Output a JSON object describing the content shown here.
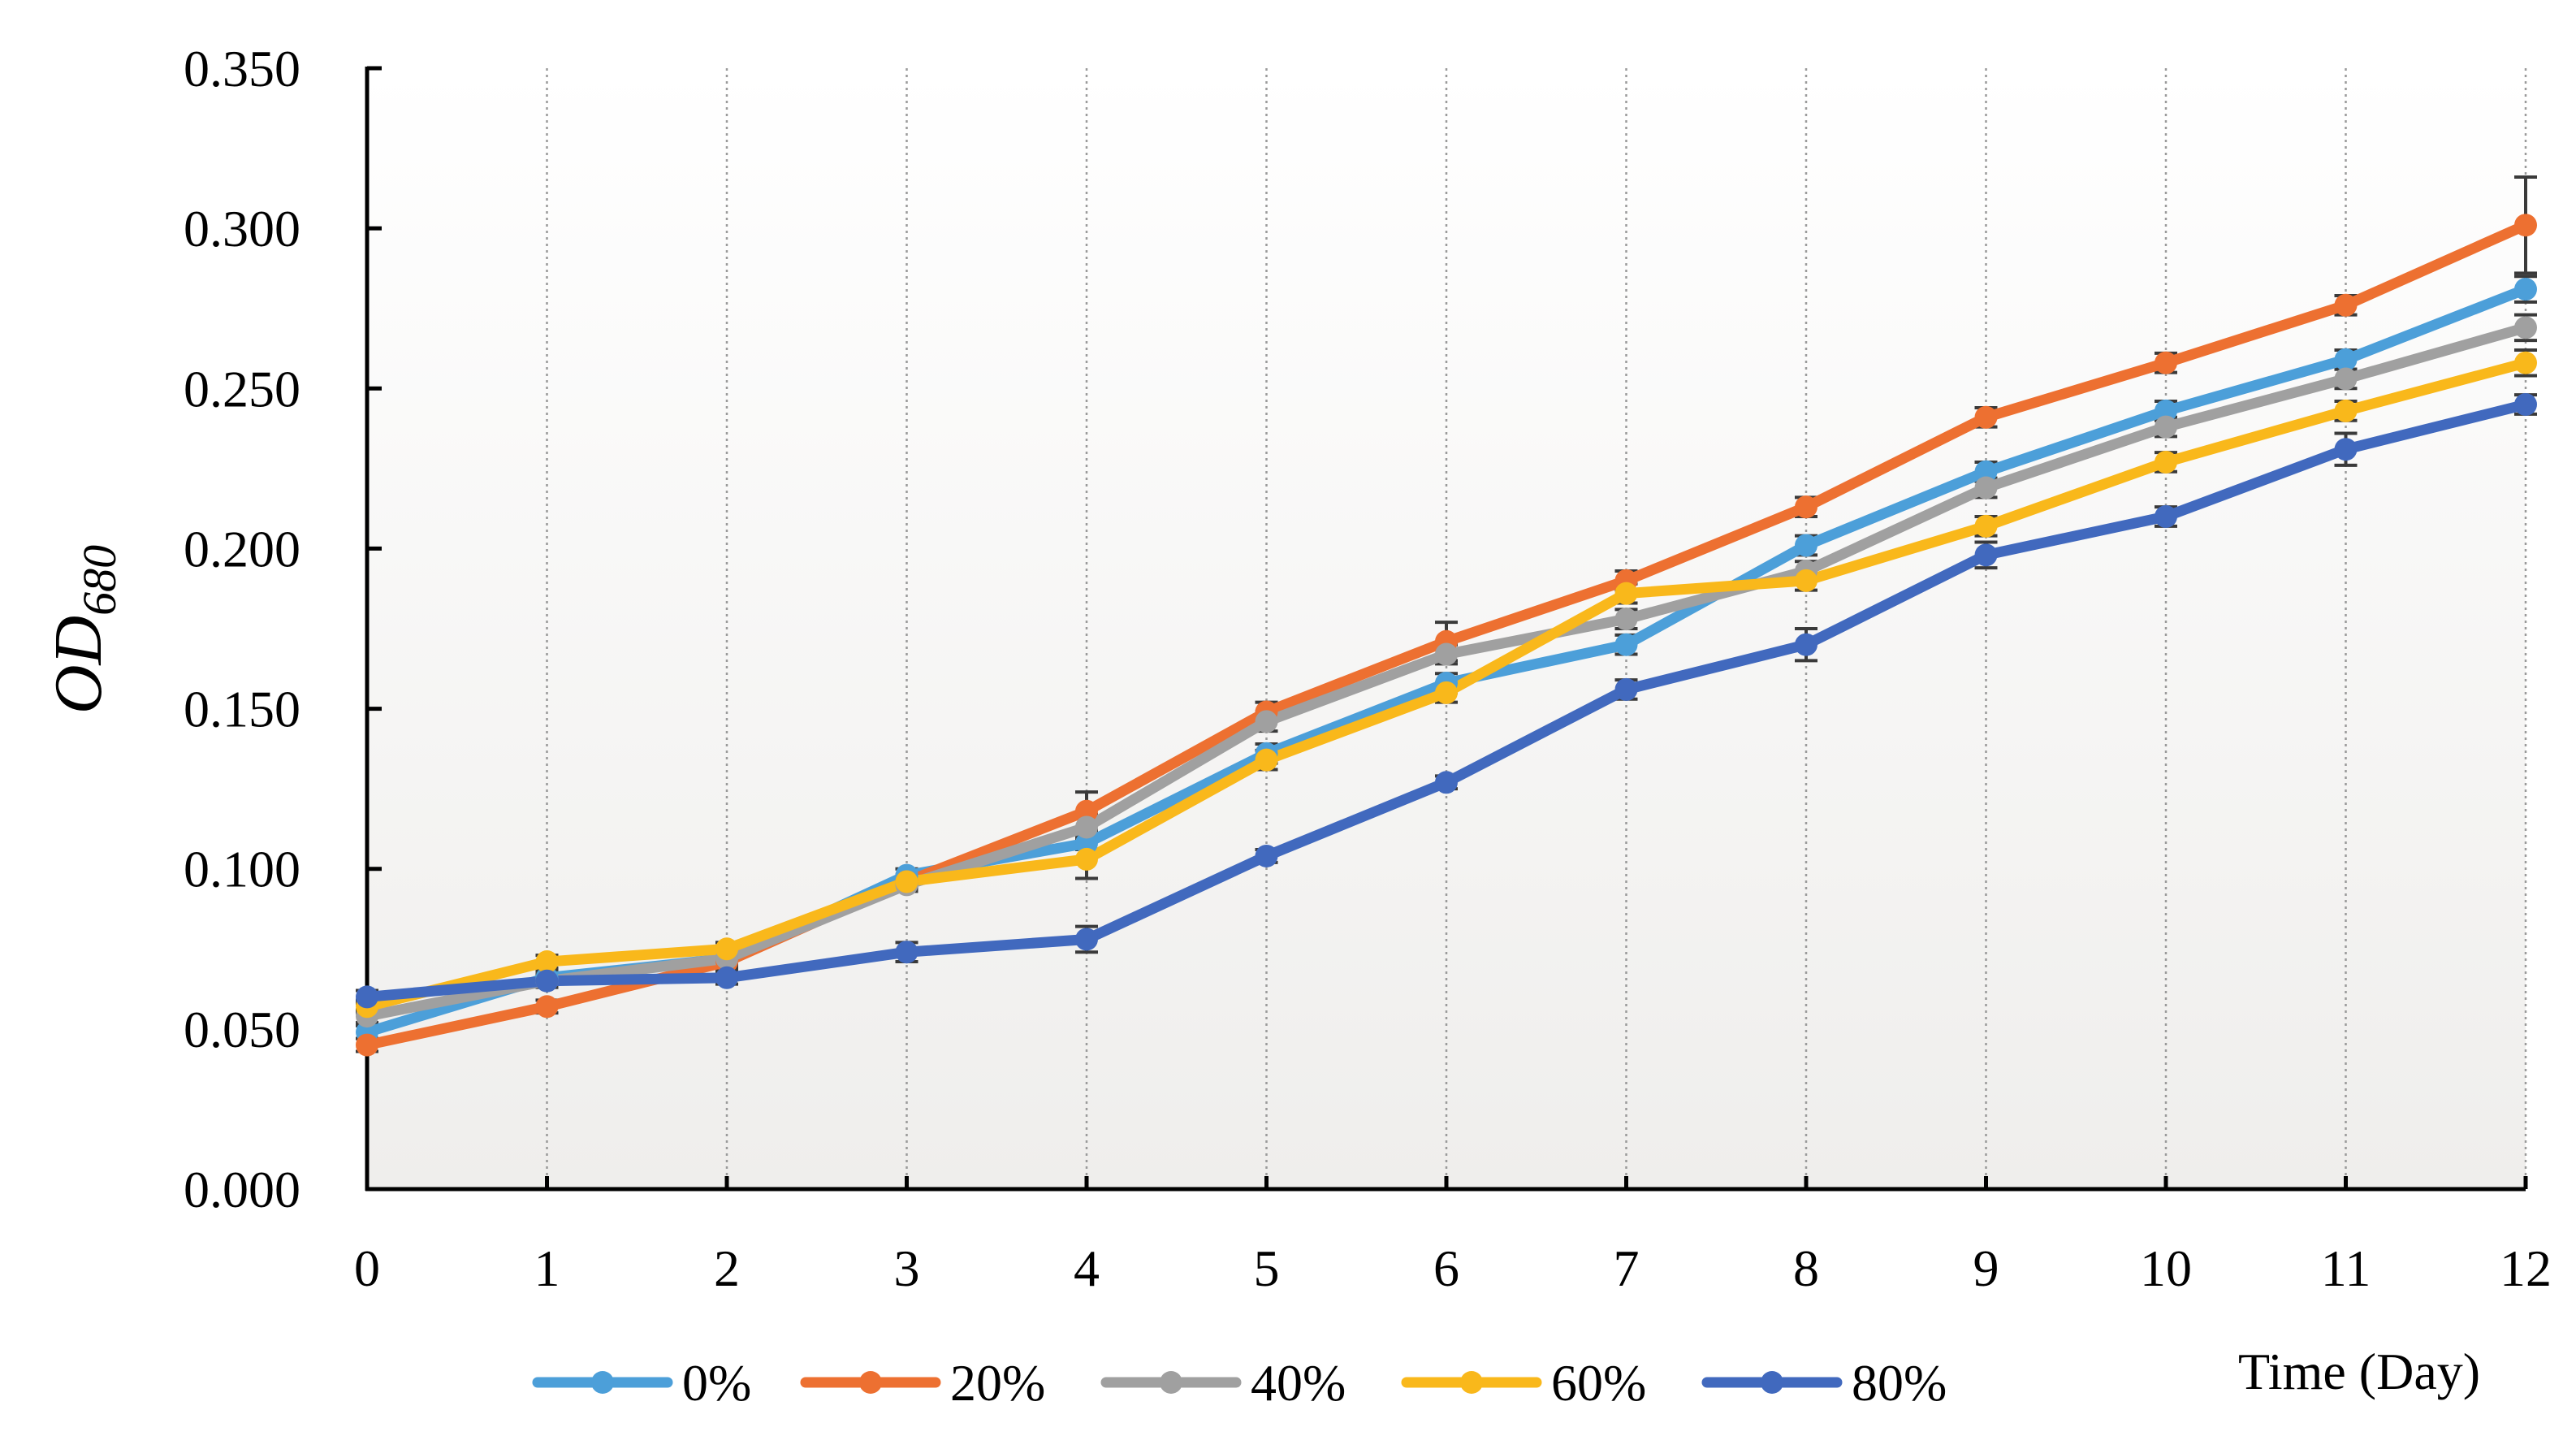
{
  "chart_data": {
    "type": "line",
    "title": "",
    "xlabel": "Time (Day)",
    "ylabel_main": "OD",
    "ylabel_subscript": "680",
    "x": [
      0,
      1,
      2,
      3,
      4,
      5,
      6,
      7,
      8,
      9,
      10,
      11,
      12
    ],
    "x_tick_labels": [
      "0",
      "1",
      "2",
      "3",
      "4",
      "5",
      "6",
      "7",
      "8",
      "9",
      "10",
      "11",
      "12"
    ],
    "xlim": [
      0,
      12
    ],
    "ylim": [
      0,
      0.35
    ],
    "y_ticks": [
      0,
      0.05,
      0.1,
      0.15,
      0.2,
      0.25,
      0.3,
      0.35
    ],
    "y_tick_labels": [
      "0.000",
      "0.050",
      "0.100",
      "0.150",
      "0.200",
      "0.250",
      "0.300",
      "0.350"
    ],
    "grid": "vertical dotted drop lines",
    "legend_position": "bottom",
    "series": [
      {
        "name": "0%",
        "color": "#4C9FD9",
        "values": [
          0.049,
          0.066,
          0.072,
          0.098,
          0.108,
          0.136,
          0.158,
          0.17,
          0.201,
          0.224,
          0.243,
          0.259,
          0.281
        ],
        "errors": [
          0.002,
          0.002,
          0.002,
          0.002,
          0.002,
          0.003,
          0.003,
          0.003,
          0.003,
          0.003,
          0.003,
          0.003,
          0.004
        ]
      },
      {
        "name": "20%",
        "color": "#ED7031",
        "values": [
          0.045,
          0.057,
          0.071,
          0.096,
          0.118,
          0.149,
          0.171,
          0.19,
          0.213,
          0.241,
          0.258,
          0.276,
          0.301
        ],
        "errors": [
          0.002,
          0.002,
          0.002,
          0.002,
          0.006,
          0.003,
          0.006,
          0.003,
          0.003,
          0.003,
          0.003,
          0.003,
          0.015
        ]
      },
      {
        "name": "40%",
        "color": "#A0A0A0",
        "values": [
          0.054,
          0.065,
          0.072,
          0.095,
          0.113,
          0.146,
          0.167,
          0.178,
          0.193,
          0.219,
          0.238,
          0.253,
          0.269
        ],
        "errors": [
          0.002,
          0.002,
          0.002,
          0.002,
          0.004,
          0.003,
          0.003,
          0.003,
          0.003,
          0.003,
          0.003,
          0.003,
          0.004
        ]
      },
      {
        "name": "60%",
        "color": "#F9B81B",
        "values": [
          0.057,
          0.071,
          0.075,
          0.096,
          0.103,
          0.134,
          0.155,
          0.186,
          0.19,
          0.207,
          0.227,
          0.243,
          0.258
        ],
        "errors": [
          0.002,
          0.002,
          0.002,
          0.002,
          0.006,
          0.003,
          0.003,
          0.003,
          0.003,
          0.003,
          0.003,
          0.003,
          0.004
        ]
      },
      {
        "name": "80%",
        "color": "#4169BE",
        "values": [
          0.06,
          0.065,
          0.066,
          0.074,
          0.078,
          0.104,
          0.127,
          0.156,
          0.17,
          0.198,
          0.21,
          0.231,
          0.245
        ],
        "errors": [
          0.002,
          0.002,
          0.002,
          0.003,
          0.004,
          0.002,
          0.002,
          0.003,
          0.005,
          0.004,
          0.003,
          0.005,
          0.003
        ]
      }
    ]
  }
}
